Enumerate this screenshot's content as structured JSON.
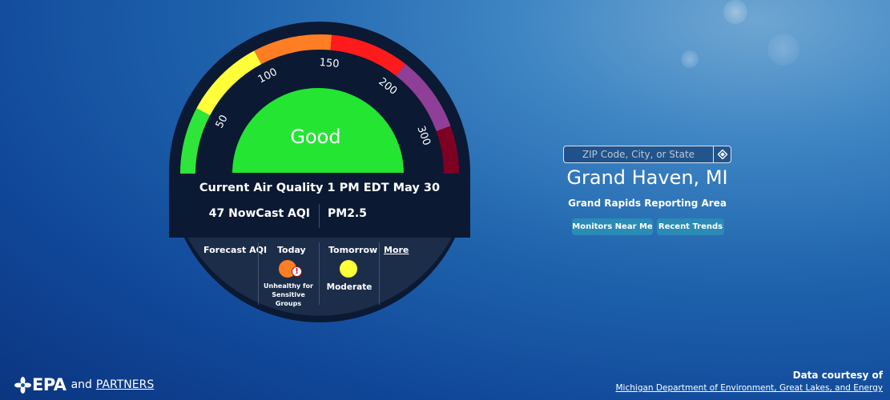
{
  "gauge": {
    "category": "Good",
    "aqi_value": 47,
    "tick_labels": [
      "50",
      "100",
      "150",
      "200",
      "300"
    ],
    "segment_colors": [
      "#2ee53a",
      "#ffff3a",
      "#ff7e23",
      "#ff1b1b",
      "#8f3f97",
      "#7e0023"
    ],
    "category_color": "#24e532"
  },
  "current": {
    "label": "Current Air Quality 1 PM EDT May 30",
    "aqi": "47 NowCast AQI",
    "pollutant": "PM2.5"
  },
  "forecast": {
    "title": "Forecast AQI",
    "more_link": "More",
    "days": [
      {
        "label": "Today",
        "category_line1": "Unhealthy for",
        "category_line2": "Sensitive Groups",
        "color": "#ff7e23",
        "alert_icon": "exclamation-icon"
      },
      {
        "label": "Tomorrow",
        "category_line1": "Moderate",
        "category_line2": "",
        "color": "#ffff3a"
      }
    ]
  },
  "location": {
    "search_placeholder": "ZIP Code, City, or State",
    "locate_icon": "locate-icon",
    "city": "Grand Haven, MI",
    "area": "Grand Rapids Reporting Area",
    "buttons": [
      "Monitors Near Me",
      "Recent Trends"
    ]
  },
  "footer": {
    "logo_text": "EPA",
    "partners_prefix": "and",
    "partners_link": "PARTNERS",
    "credit_title": "Data courtesy of",
    "credit_link": "Michigan Department of Environment, Great Lakes, and Energy"
  }
}
